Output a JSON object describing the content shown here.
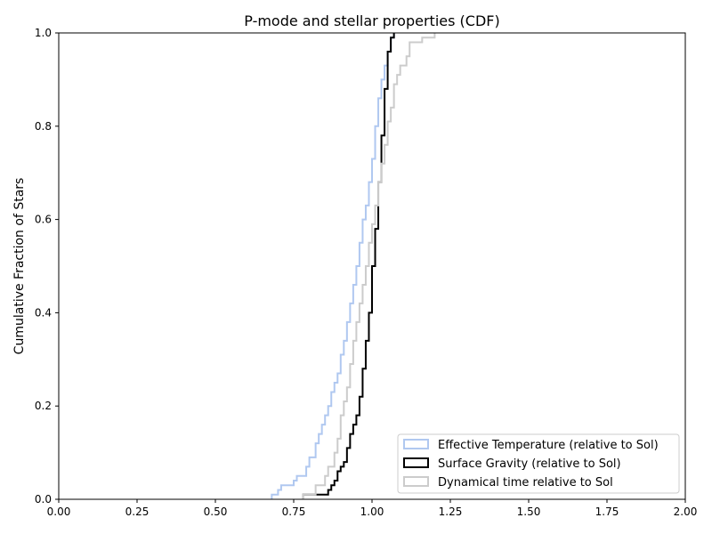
{
  "chart_data": {
    "type": "line",
    "step": true,
    "title": "P-mode and stellar properties (CDF)",
    "xlabel": "",
    "ylabel": "Cumulative Fraction of Stars",
    "xlim": [
      0.0,
      2.0
    ],
    "ylim": [
      0.0,
      1.0
    ],
    "x_ticks": [
      "0.00",
      "0.25",
      "0.50",
      "0.75",
      "1.00",
      "1.25",
      "1.50",
      "1.75",
      "2.00"
    ],
    "y_ticks": [
      "0.0",
      "0.2",
      "0.4",
      "0.6",
      "0.8",
      "1.0"
    ],
    "grid": false,
    "legend_position": "lower-right",
    "series": [
      {
        "name": "Effective Temperature (relative to Sol)",
        "color": "#b0c8f0",
        "points": [
          [
            0.68,
            0.0
          ],
          [
            0.68,
            0.01
          ],
          [
            0.7,
            0.01
          ],
          [
            0.7,
            0.02
          ],
          [
            0.71,
            0.02
          ],
          [
            0.71,
            0.03
          ],
          [
            0.75,
            0.03
          ],
          [
            0.75,
            0.04
          ],
          [
            0.76,
            0.04
          ],
          [
            0.76,
            0.05
          ],
          [
            0.79,
            0.05
          ],
          [
            0.79,
            0.07
          ],
          [
            0.8,
            0.07
          ],
          [
            0.8,
            0.09
          ],
          [
            0.82,
            0.09
          ],
          [
            0.82,
            0.12
          ],
          [
            0.83,
            0.12
          ],
          [
            0.83,
            0.14
          ],
          [
            0.84,
            0.14
          ],
          [
            0.84,
            0.16
          ],
          [
            0.85,
            0.16
          ],
          [
            0.85,
            0.18
          ],
          [
            0.86,
            0.18
          ],
          [
            0.86,
            0.2
          ],
          [
            0.87,
            0.2
          ],
          [
            0.87,
            0.23
          ],
          [
            0.88,
            0.23
          ],
          [
            0.88,
            0.25
          ],
          [
            0.89,
            0.25
          ],
          [
            0.89,
            0.27
          ],
          [
            0.9,
            0.27
          ],
          [
            0.9,
            0.31
          ],
          [
            0.91,
            0.31
          ],
          [
            0.91,
            0.34
          ],
          [
            0.92,
            0.34
          ],
          [
            0.92,
            0.38
          ],
          [
            0.93,
            0.38
          ],
          [
            0.93,
            0.42
          ],
          [
            0.94,
            0.42
          ],
          [
            0.94,
            0.46
          ],
          [
            0.95,
            0.46
          ],
          [
            0.95,
            0.5
          ],
          [
            0.96,
            0.5
          ],
          [
            0.96,
            0.55
          ],
          [
            0.97,
            0.55
          ],
          [
            0.97,
            0.6
          ],
          [
            0.98,
            0.6
          ],
          [
            0.98,
            0.63
          ],
          [
            0.99,
            0.63
          ],
          [
            0.99,
            0.68
          ],
          [
            1.0,
            0.68
          ],
          [
            1.0,
            0.73
          ],
          [
            1.01,
            0.73
          ],
          [
            1.01,
            0.8
          ],
          [
            1.02,
            0.8
          ],
          [
            1.02,
            0.86
          ],
          [
            1.03,
            0.86
          ],
          [
            1.03,
            0.9
          ],
          [
            1.04,
            0.9
          ],
          [
            1.04,
            0.93
          ],
          [
            1.05,
            0.93
          ],
          [
            1.05,
            0.96
          ],
          [
            1.06,
            0.96
          ],
          [
            1.06,
            0.99
          ],
          [
            1.07,
            0.99
          ],
          [
            1.07,
            1.0
          ]
        ]
      },
      {
        "name": "Surface Gravity (relative to Sol)",
        "color": "#000000",
        "points": [
          [
            0.78,
            0.0
          ],
          [
            0.78,
            0.01
          ],
          [
            0.86,
            0.01
          ],
          [
            0.86,
            0.02
          ],
          [
            0.87,
            0.02
          ],
          [
            0.87,
            0.03
          ],
          [
            0.88,
            0.03
          ],
          [
            0.88,
            0.04
          ],
          [
            0.89,
            0.04
          ],
          [
            0.89,
            0.06
          ],
          [
            0.9,
            0.06
          ],
          [
            0.9,
            0.07
          ],
          [
            0.91,
            0.07
          ],
          [
            0.91,
            0.08
          ],
          [
            0.92,
            0.08
          ],
          [
            0.92,
            0.11
          ],
          [
            0.93,
            0.11
          ],
          [
            0.93,
            0.14
          ],
          [
            0.94,
            0.14
          ],
          [
            0.94,
            0.16
          ],
          [
            0.95,
            0.16
          ],
          [
            0.95,
            0.18
          ],
          [
            0.96,
            0.18
          ],
          [
            0.96,
            0.22
          ],
          [
            0.97,
            0.22
          ],
          [
            0.97,
            0.28
          ],
          [
            0.98,
            0.28
          ],
          [
            0.98,
            0.34
          ],
          [
            0.99,
            0.34
          ],
          [
            0.99,
            0.4
          ],
          [
            1.0,
            0.4
          ],
          [
            1.0,
            0.5
          ],
          [
            1.01,
            0.5
          ],
          [
            1.01,
            0.58
          ],
          [
            1.02,
            0.58
          ],
          [
            1.02,
            0.68
          ],
          [
            1.03,
            0.68
          ],
          [
            1.03,
            0.78
          ],
          [
            1.04,
            0.78
          ],
          [
            1.04,
            0.88
          ],
          [
            1.05,
            0.88
          ],
          [
            1.05,
            0.96
          ],
          [
            1.06,
            0.96
          ],
          [
            1.06,
            0.99
          ],
          [
            1.07,
            0.99
          ],
          [
            1.07,
            1.0
          ]
        ]
      },
      {
        "name": "Dynamical time relative to Sol",
        "color": "#cccccc",
        "points": [
          [
            0.78,
            0.0
          ],
          [
            0.78,
            0.01
          ],
          [
            0.82,
            0.01
          ],
          [
            0.82,
            0.03
          ],
          [
            0.85,
            0.03
          ],
          [
            0.85,
            0.05
          ],
          [
            0.86,
            0.05
          ],
          [
            0.86,
            0.07
          ],
          [
            0.88,
            0.07
          ],
          [
            0.88,
            0.1
          ],
          [
            0.89,
            0.1
          ],
          [
            0.89,
            0.13
          ],
          [
            0.9,
            0.13
          ],
          [
            0.9,
            0.18
          ],
          [
            0.91,
            0.18
          ],
          [
            0.91,
            0.21
          ],
          [
            0.92,
            0.21
          ],
          [
            0.92,
            0.24
          ],
          [
            0.93,
            0.24
          ],
          [
            0.93,
            0.29
          ],
          [
            0.94,
            0.29
          ],
          [
            0.94,
            0.34
          ],
          [
            0.95,
            0.34
          ],
          [
            0.95,
            0.38
          ],
          [
            0.96,
            0.38
          ],
          [
            0.96,
            0.42
          ],
          [
            0.97,
            0.42
          ],
          [
            0.97,
            0.46
          ],
          [
            0.98,
            0.46
          ],
          [
            0.98,
            0.5
          ],
          [
            0.99,
            0.5
          ],
          [
            0.99,
            0.55
          ],
          [
            1.0,
            0.55
          ],
          [
            1.0,
            0.59
          ],
          [
            1.01,
            0.59
          ],
          [
            1.01,
            0.63
          ],
          [
            1.02,
            0.63
          ],
          [
            1.02,
            0.68
          ],
          [
            1.03,
            0.68
          ],
          [
            1.03,
            0.72
          ],
          [
            1.04,
            0.72
          ],
          [
            1.04,
            0.76
          ],
          [
            1.05,
            0.76
          ],
          [
            1.05,
            0.81
          ],
          [
            1.06,
            0.81
          ],
          [
            1.06,
            0.84
          ],
          [
            1.07,
            0.84
          ],
          [
            1.07,
            0.89
          ],
          [
            1.08,
            0.89
          ],
          [
            1.08,
            0.91
          ],
          [
            1.09,
            0.91
          ],
          [
            1.09,
            0.93
          ],
          [
            1.11,
            0.93
          ],
          [
            1.11,
            0.95
          ],
          [
            1.12,
            0.95
          ],
          [
            1.12,
            0.98
          ],
          [
            1.16,
            0.98
          ],
          [
            1.16,
            0.99
          ],
          [
            1.2,
            0.99
          ],
          [
            1.2,
            1.0
          ]
        ]
      }
    ]
  }
}
